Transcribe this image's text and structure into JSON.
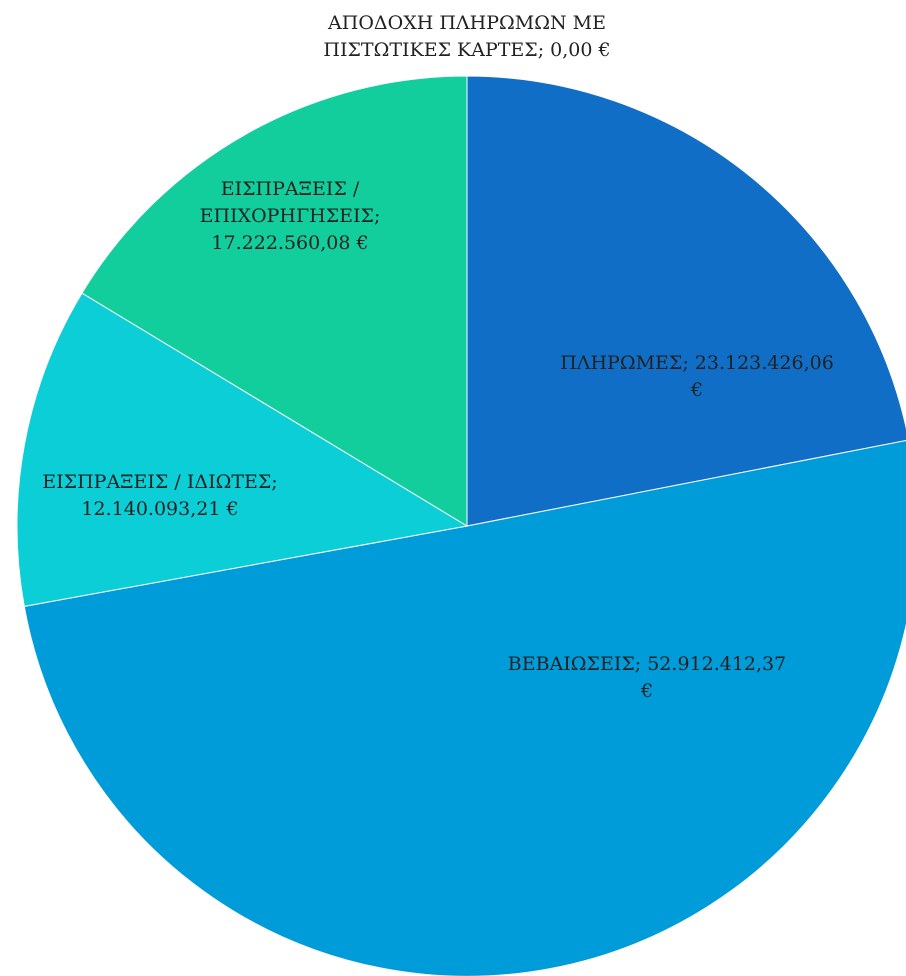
{
  "chart_data": {
    "type": "pie",
    "title": "",
    "currency": "€",
    "slices": [
      {
        "label": "ΠΛΗΡΩΜΕΣ",
        "value": 23123426.06,
        "display": "ΠΛΗΡΩΜΕΣ; 23.123.426,06 €",
        "color": "#106EC6"
      },
      {
        "label": "ΒΕΒΑΙΩΣΕΙΣ",
        "value": 52912412.37,
        "display": "ΒΕΒΑΙΩΣΕΙΣ; 52.912.412,37 €",
        "color": "#009CDA"
      },
      {
        "label": "ΕΙΣΠΡΑΞΕΙΣ / ΙΔΙΩΤΕΣ",
        "value": 12140093.21,
        "display": "ΕΙΣΠΡΑΞΕΙΣ / ΙΔΙΩΤΕΣ; 12.140.093,21 €",
        "color": "#0CCED6"
      },
      {
        "label": "ΕΙΣΠΡΑΞΕΙΣ / ΕΠΙΧΟΡΗΓΗΣΕΙΣ",
        "value": 17222560.08,
        "display": "ΕΙΣΠΡΑΞΕΙΣ / ΕΠΙΧΟΡΗΓΗΣΕΙΣ; 17.222.560,08 €",
        "color": "#12CE9C"
      },
      {
        "label": "ΑΠΟΔΟΧΗ ΠΛΗΡΩΜΩΝ ΜΕ ΠΙΣΤΩΤΙΚΕΣ ΚΑΡΤΕΣ",
        "value": 0.0,
        "display": "ΑΠΟΔΟΧΗ ΠΛΗΡΩΜΩΝ ΜΕ ΠΙΣΤΩΤΙΚΕΣ ΚΑΡΤΕΣ; 0,00 €",
        "color": "#2E8B57"
      }
    ]
  }
}
